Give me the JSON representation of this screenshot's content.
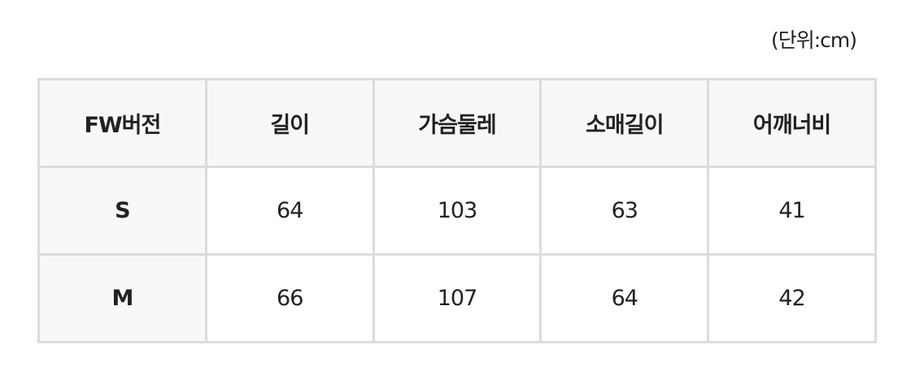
{
  "unit_label": "(단위:cm)",
  "headers": [
    "FW버전",
    "길이",
    "가슴둘레",
    "소매길이",
    "어깨너비"
  ],
  "rows": [
    {
      "size": "S",
      "values": [
        "64",
        "103",
        "63",
        "41"
      ]
    },
    {
      "size": "M",
      "values": [
        "66",
        "107",
        "64",
        "42"
      ]
    }
  ],
  "colors": {
    "border": "#dcdcdc",
    "header_bg": "#f8f8fa",
    "text": "#222222"
  }
}
